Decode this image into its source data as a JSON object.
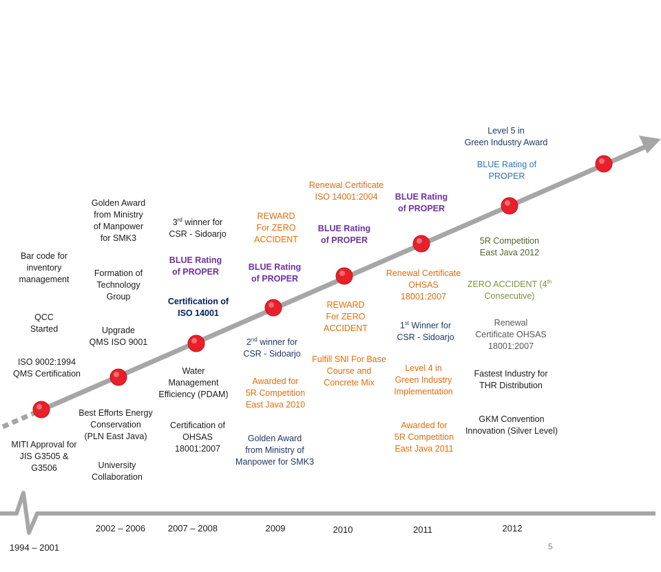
{
  "colors": {
    "arrow": "#a6a6a6",
    "dot": "#e8202a",
    "orange": "#e46c0a",
    "purple": "#7030a0",
    "navy": "#1f3864",
    "blue": "#2e75b6",
    "green": "#4f6228"
  },
  "periods": [
    "1994 – 2001",
    "2002 – 2006",
    "2007 – 2008",
    "2009",
    "2010",
    "2011",
    "2012"
  ],
  "page_number": "5",
  "milestones": {
    "p1994": {
      "bar_code": "Bar code for\ninventory\nmanagement",
      "qcc": "QCC\nStarted",
      "iso9002": "ISO 9002:1994\nQMS Certification",
      "miti": "MITI Approval for\nJIS G3505  &\nG3506"
    },
    "p2002": {
      "golden_award": "Golden Award\nfrom Ministry\nof Manpower\nfor SMK3",
      "tech_group": "Formation of\nTechnology\nGroup",
      "qms9001": "Upgrade\nQMS ISO 9001",
      "energy": "Best Efforts Energy\nConservation\n(PLN East Java)",
      "university": "University\nCollaboration"
    },
    "p2007": {
      "csr_sup": "rd",
      "csr_rest": " winner for\nCSR - Sidoarjo",
      "csr_num": "3",
      "blue_proper": "BLUE Rating\nof PROPER",
      "iso14001": "Certification of\nISO 14001",
      "water": "Water\nManagement\nEfficiency (PDAM)",
      "ohsas": "Certification of\nOHSAS\n18001:2007"
    },
    "p2009": {
      "reward": "REWARD\nFor ZERO\nACCIDENT",
      "blue_proper": "BLUE Rating\nof  PROPER",
      "csr_num": "2",
      "csr_sup": "nd",
      "csr_rest": " winner for\nCSR - Sidoarjo",
      "awarded_5r": "Awarded for\n5R Competition\nEast Java 2010",
      "golden_award": "Golden Award\nfrom Ministry of\nManpower for SMK3"
    },
    "p2010": {
      "renewal_iso": "Renewal Certificate\nISO 14001:2004",
      "blue_proper": "BLUE Rating\nof  PROPER",
      "reward": "REWARD\nFor ZERO\nACCIDENT",
      "sni": "Fulfill SNI For Base\nCourse and\nConcrete Mix"
    },
    "p2011": {
      "blue_proper": "BLUE Rating\nof  PROPER",
      "renewal_ohsas": "Renewal Certificate\nOHSAS\n18001:2007",
      "csr_num": "1",
      "csr_sup": "st",
      "csr_rest": " Winner for\nCSR - Sidoarjo",
      "level4": "Level 4 in\nGreen Industry\nImplementation",
      "awarded_5r": "Awarded for\n5R Competition\nEast Java 2011"
    },
    "p2012": {
      "level5": "Level 5 in\nGreen Industry Award",
      "blue_proper": "BLUE Rating      of\nPROPER",
      "comp_5r": "5R Competition\nEast Java 2012",
      "zero_pre": "ZERO ACCIDENT (4",
      "zero_sup": "th",
      "zero_post": "\nConsecutive)",
      "renewal_ohsas": "Renewal\nCertificate OHSAS\n18001:2007",
      "fastest": "Fastest Industry for\nTHR Distribution",
      "gkm": "GKM Convention\nInnovation (Silver Level)"
    }
  }
}
